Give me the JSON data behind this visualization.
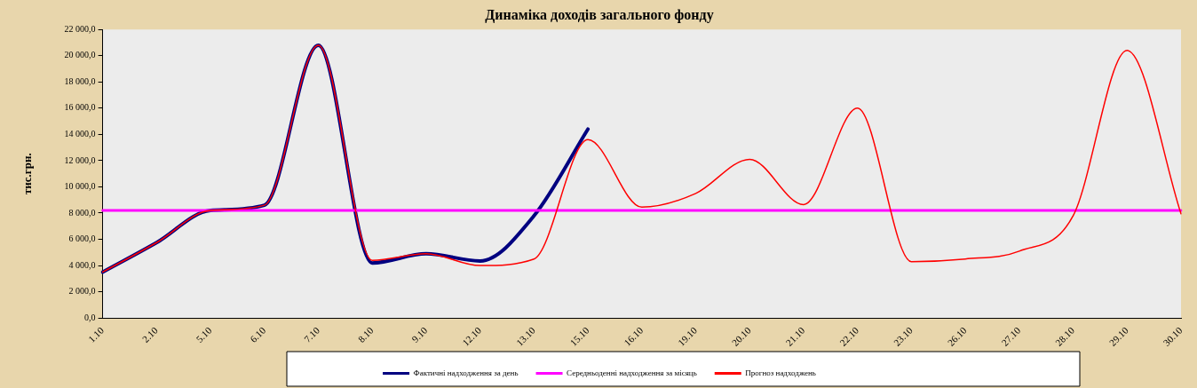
{
  "chart_data": {
    "type": "line",
    "title": "Динаміка доходів загального фонду",
    "ylabel": "тис.грн.",
    "categories": [
      "1.10",
      "2.10",
      "5.10",
      "6.10",
      "7.10",
      "8.10",
      "9.10",
      "12.10",
      "13.10",
      "15.10",
      "16.10",
      "19.10",
      "20.10",
      "21.10",
      "22.10",
      "23.10",
      "26.10",
      "27.10",
      "28.10",
      "29.10",
      "30.10"
    ],
    "series": [
      {
        "name": "Фактичні надходження за день",
        "color": "#000080",
        "values": [
          3500,
          5750,
          8200,
          8600,
          20800,
          4200,
          4900,
          4350,
          7800,
          14400,
          null,
          null,
          null,
          null,
          null,
          null,
          null,
          null,
          null,
          null,
          null
        ]
      },
      {
        "name": "Середньоденні надходження за місяць",
        "color": "#ff00ff",
        "values": [
          8200,
          8200,
          8200,
          8200,
          8200,
          8200,
          8200,
          8200,
          8200,
          8200,
          8200,
          8200,
          8200,
          8200,
          8200,
          8200,
          8200,
          8200,
          8200,
          8200,
          8200
        ]
      },
      {
        "name": "Прогноз надходжень",
        "color": "#ff0000",
        "values": [
          3500,
          5750,
          8200,
          8600,
          20800,
          4400,
          4900,
          4000,
          4500,
          13600,
          8450,
          9500,
          12100,
          8650,
          16000,
          4300,
          4500,
          5100,
          7800,
          20400,
          7950
        ]
      }
    ],
    "ylim": [
      0,
      22000
    ],
    "yticks": [
      {
        "value": 0,
        "label": "0,0"
      },
      {
        "value": 2000,
        "label": "2 000,0"
      },
      {
        "value": 4000,
        "label": "4 000,0"
      },
      {
        "value": 6000,
        "label": "6 000,0"
      },
      {
        "value": 8000,
        "label": "8 000,0"
      },
      {
        "value": 10000,
        "label": "10 000,0"
      },
      {
        "value": 12000,
        "label": "12 000,0"
      },
      {
        "value": 14000,
        "label": "14 000,0"
      },
      {
        "value": 16000,
        "label": "16 000,0"
      },
      {
        "value": 18000,
        "label": "18 000,0"
      },
      {
        "value": 20000,
        "label": "20 000,0"
      },
      {
        "value": 22000,
        "label": "22 000,0"
      }
    ],
    "grid": false,
    "legend": "bottom",
    "marker": "none",
    "line_style": "solid"
  }
}
